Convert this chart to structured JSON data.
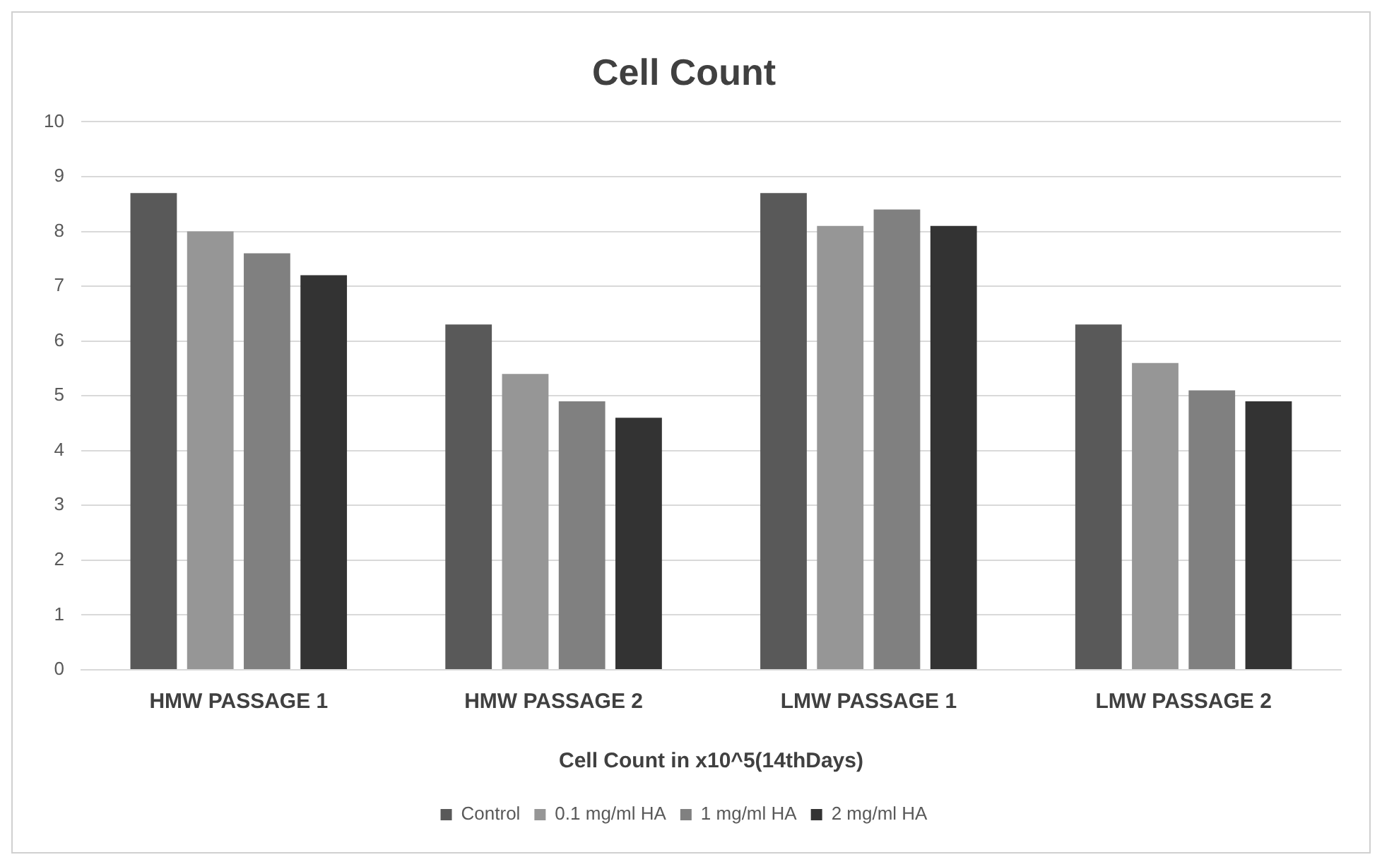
{
  "chart_data": {
    "type": "bar",
    "title": "Cell Count",
    "xlabel": "Cell Count in x10^5(14thDays)",
    "categories": [
      "HMW PASSAGE 1",
      "HMW PASSAGE 2",
      "LMW PASSAGE 1",
      "LMW PASSAGE 2"
    ],
    "series": [
      {
        "name": "Control",
        "color": "#595959",
        "values": [
          8.7,
          6.3,
          8.7,
          6.3
        ]
      },
      {
        "name": "0.1 mg/ml HA",
        "color": "#969696",
        "values": [
          8.0,
          5.4,
          8.1,
          5.6
        ]
      },
      {
        "name": "1 mg/ml HA",
        "color": "#808080",
        "values": [
          7.6,
          4.9,
          8.4,
          5.1
        ]
      },
      {
        "name": "2 mg/ml HA",
        "color": "#333333",
        "values": [
          7.2,
          4.6,
          8.1,
          4.9
        ]
      }
    ],
    "ylim": [
      0,
      10
    ],
    "yticks": [
      0,
      1,
      2,
      3,
      4,
      5,
      6,
      7,
      8,
      9,
      10
    ],
    "grid": "y",
    "legend": "bottom"
  }
}
